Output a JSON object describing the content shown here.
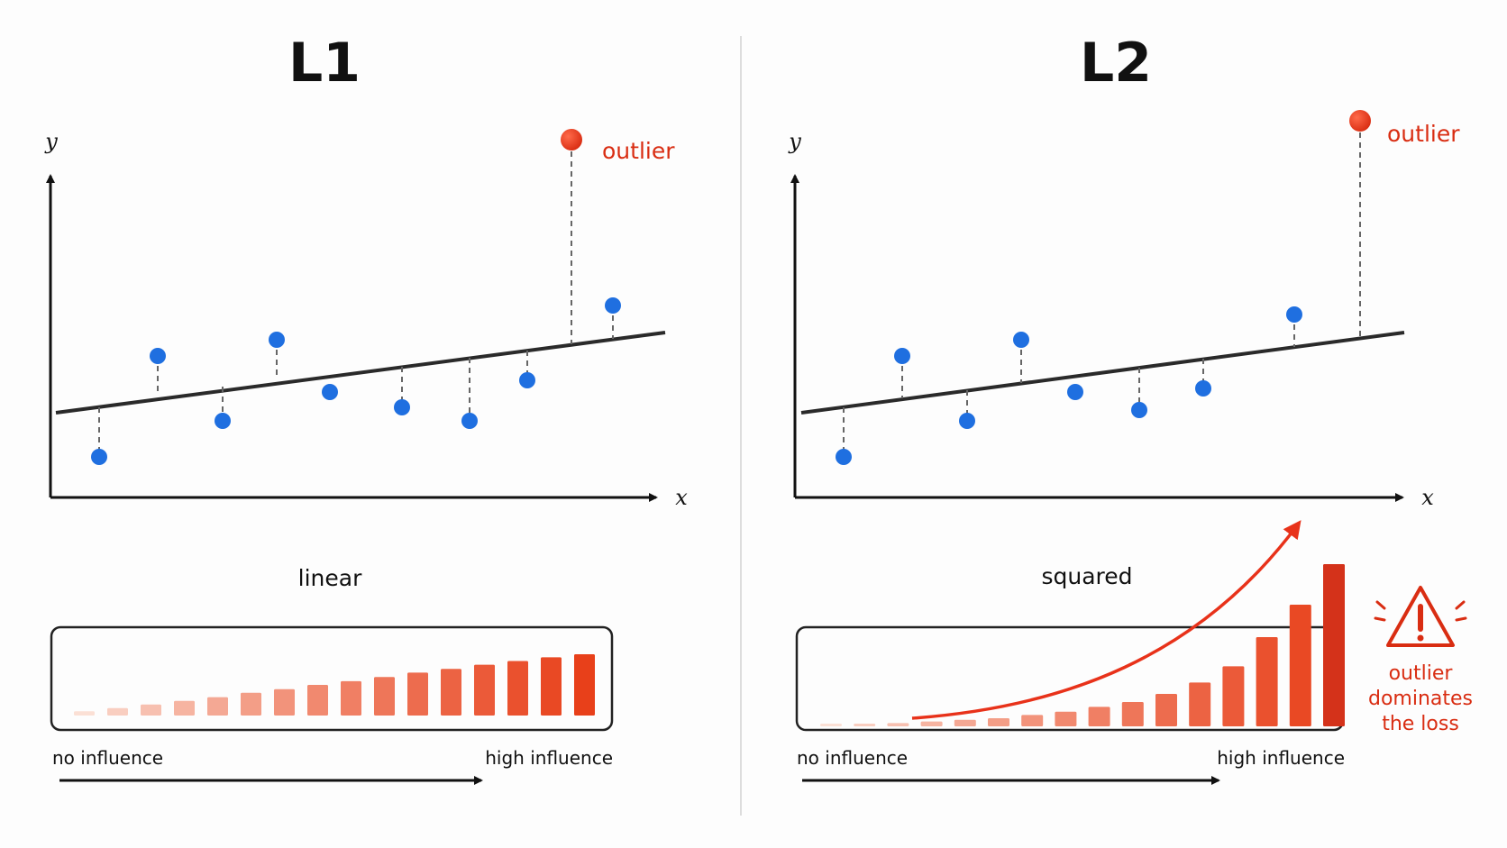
{
  "panels": [
    {
      "id": "l1",
      "title": "L1",
      "axis_y": "y",
      "axis_x": "x",
      "outlier_label": "outlier",
      "mode_label": "linear",
      "scale_low": "no influence",
      "scale_high": "high influence",
      "bar_values": [
        0.07,
        0.12,
        0.18,
        0.24,
        0.3,
        0.37,
        0.43,
        0.5,
        0.56,
        0.63,
        0.7,
        0.76,
        0.83,
        0.89,
        0.95,
        1.0
      ]
    },
    {
      "id": "l2",
      "title": "L2",
      "axis_y": "y",
      "axis_x": "x",
      "outlier_label": "outlier",
      "mode_label": "squared",
      "scale_low": "no influence",
      "scale_high": "high influence",
      "bar_values": [
        0.01,
        0.01,
        0.02,
        0.03,
        0.04,
        0.05,
        0.07,
        0.09,
        0.12,
        0.15,
        0.2,
        0.27,
        0.37,
        0.55,
        0.75,
        1.0
      ]
    }
  ],
  "warning": {
    "lines": [
      "outlier",
      "dominates",
      "the loss"
    ]
  },
  "colors": {
    "point": "#1f6fe0",
    "outlier": "#e8321a",
    "accent": "#d92d12",
    "bar_light": "#fbe0d5",
    "bar_dark": "#e8401a",
    "bar_darkest": "#d4321a"
  }
}
